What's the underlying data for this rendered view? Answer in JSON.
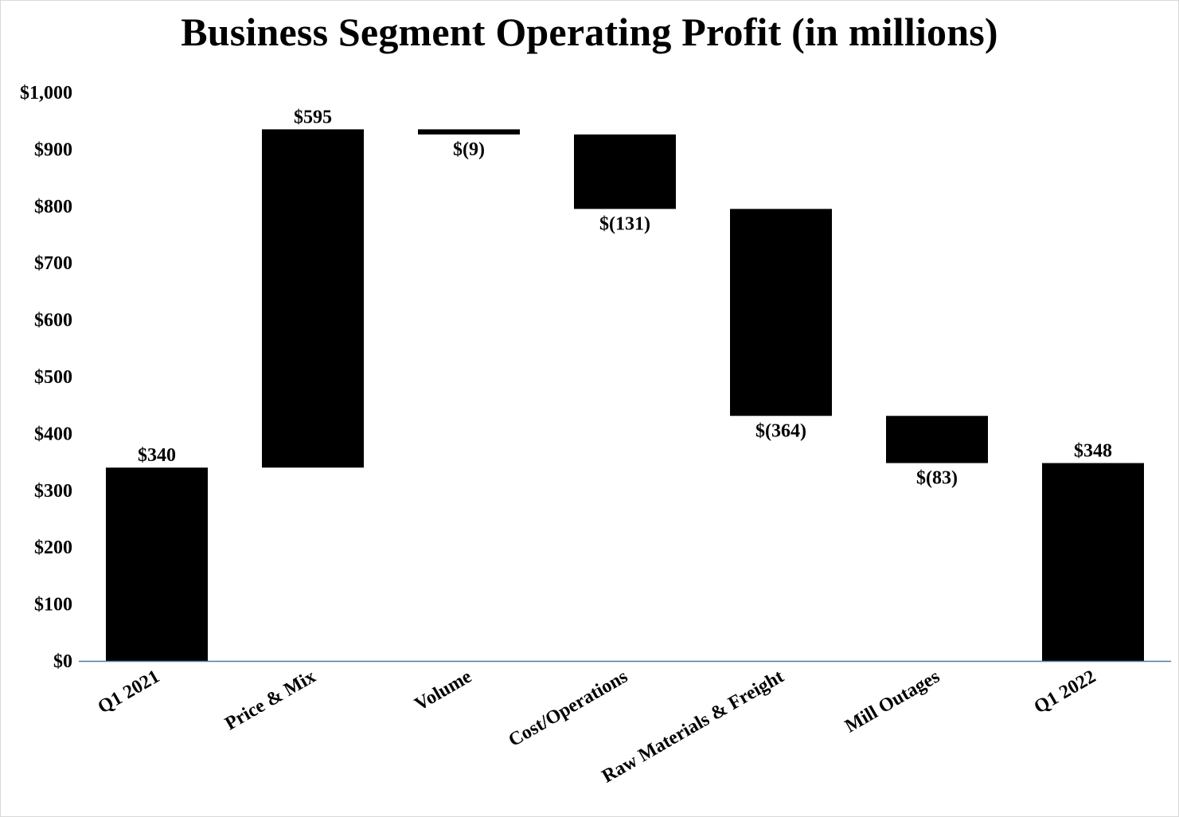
{
  "chart_data": {
    "type": "bar",
    "subtype": "waterfall",
    "title": "Business Segment Operating Profit (in millions)",
    "xlabel": "",
    "ylabel": "",
    "ylim": [
      0,
      1000
    ],
    "y_ticks": [
      0,
      100,
      200,
      300,
      400,
      500,
      600,
      700,
      800,
      900,
      1000
    ],
    "y_tick_labels": [
      "$0",
      "$100",
      "$200",
      "$300",
      "$400",
      "$500",
      "$600",
      "$700",
      "$800",
      "$900",
      "$1,000"
    ],
    "categories": [
      "Q1 2021",
      "Price & Mix",
      "Volume",
      "Cost/Operations",
      "Raw Materials & Freight",
      "Mill Outages",
      "Q1 2022"
    ],
    "values": [
      340,
      595,
      -9,
      -131,
      -364,
      -83,
      348
    ],
    "kinds": [
      "total",
      "delta",
      "delta",
      "delta",
      "delta",
      "delta",
      "total"
    ],
    "data_labels": [
      "$340",
      "$595",
      "$(9)",
      "$(131)",
      "$(364)",
      "$(83)",
      "$348"
    ],
    "bar_color": "#000000",
    "axis_color": "#4a7ea8",
    "grid": false,
    "legend": "none"
  }
}
